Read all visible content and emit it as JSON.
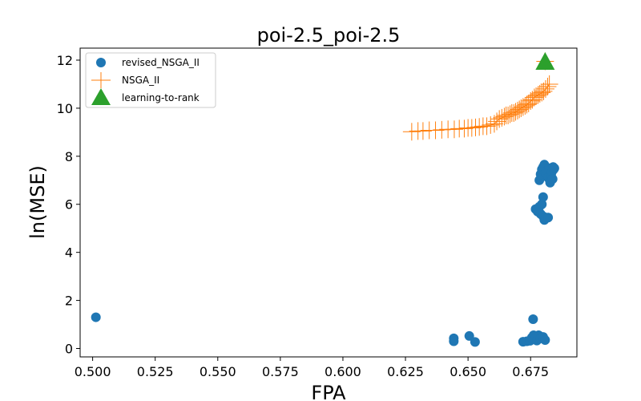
{
  "chart_data": {
    "type": "scatter",
    "title": "poi-2.5_poi-2.5",
    "xlabel": "FPA",
    "ylabel": "ln(MSE)",
    "xlim": [
      0.495,
      0.6935
    ],
    "ylim": [
      -0.35,
      12.5
    ],
    "xticks": [
      0.5,
      0.525,
      0.55,
      0.575,
      0.6,
      0.625,
      0.65,
      0.675
    ],
    "xtick_labels": [
      "0.500",
      "0.525",
      "0.550",
      "0.575",
      "0.600",
      "0.625",
      "0.650",
      "0.675"
    ],
    "yticks": [
      0,
      2,
      4,
      6,
      8,
      10,
      12
    ],
    "ytick_labels": [
      "0",
      "2",
      "4",
      "6",
      "8",
      "10",
      "12"
    ],
    "grid": false,
    "legend_position": "top-left",
    "colors": {
      "revised_NSGA_II": "#1f77b4",
      "NSGA_II": "#ff7f0e",
      "learning-to-rank": "#2ca02c"
    },
    "series": [
      {
        "name": "revised_NSGA_II",
        "marker": "circle",
        "points": [
          [
            0.5013,
            1.3
          ],
          [
            0.6443,
            0.42
          ],
          [
            0.6443,
            0.3
          ],
          [
            0.6505,
            0.52
          ],
          [
            0.6528,
            0.27
          ],
          [
            0.672,
            0.28
          ],
          [
            0.6735,
            0.3
          ],
          [
            0.6748,
            0.32
          ],
          [
            0.6755,
            0.45
          ],
          [
            0.676,
            1.22
          ],
          [
            0.6762,
            0.55
          ],
          [
            0.6768,
            0.4
          ],
          [
            0.6775,
            0.33
          ],
          [
            0.6782,
            0.55
          ],
          [
            0.679,
            0.42
          ],
          [
            0.68,
            0.48
          ],
          [
            0.6808,
            0.35
          ],
          [
            0.677,
            5.8
          ],
          [
            0.6778,
            5.7
          ],
          [
            0.6785,
            5.9
          ],
          [
            0.679,
            5.6
          ],
          [
            0.6795,
            6.0
          ],
          [
            0.68,
            5.5
          ],
          [
            0.6805,
            5.35
          ],
          [
            0.681,
            5.45
          ],
          [
            0.68,
            6.3
          ],
          [
            0.682,
            5.45
          ],
          [
            0.6785,
            7.0
          ],
          [
            0.679,
            7.25
          ],
          [
            0.6795,
            7.45
          ],
          [
            0.68,
            7.55
          ],
          [
            0.6805,
            7.65
          ],
          [
            0.681,
            7.3
          ],
          [
            0.6815,
            7.4
          ],
          [
            0.682,
            7.1
          ],
          [
            0.6825,
            7.5
          ],
          [
            0.6828,
            6.9
          ],
          [
            0.6832,
            7.2
          ],
          [
            0.6835,
            7.35
          ],
          [
            0.684,
            7.55
          ],
          [
            0.6838,
            7.05
          ],
          [
            0.6842,
            7.45
          ],
          [
            0.6845,
            7.5
          ]
        ]
      },
      {
        "name": "NSGA_II",
        "marker": "plus",
        "points": [
          [
            0.6275,
            9.02
          ],
          [
            0.63,
            9.05
          ],
          [
            0.632,
            9.05
          ],
          [
            0.6345,
            9.08
          ],
          [
            0.637,
            9.08
          ],
          [
            0.6395,
            9.1
          ],
          [
            0.642,
            9.12
          ],
          [
            0.6445,
            9.12
          ],
          [
            0.6465,
            9.15
          ],
          [
            0.6485,
            9.15
          ],
          [
            0.65,
            9.18
          ],
          [
            0.6515,
            9.18
          ],
          [
            0.653,
            9.2
          ],
          [
            0.6545,
            9.22
          ],
          [
            0.656,
            9.25
          ],
          [
            0.6575,
            9.25
          ],
          [
            0.659,
            9.3
          ],
          [
            0.6605,
            9.35
          ],
          [
            0.6615,
            9.45
          ],
          [
            0.6625,
            9.55
          ],
          [
            0.6635,
            9.6
          ],
          [
            0.6645,
            9.65
          ],
          [
            0.6652,
            9.7
          ],
          [
            0.666,
            9.7
          ],
          [
            0.6668,
            9.75
          ],
          [
            0.6675,
            9.8
          ],
          [
            0.6683,
            9.8
          ],
          [
            0.669,
            9.85
          ],
          [
            0.6698,
            9.9
          ],
          [
            0.6705,
            9.95
          ],
          [
            0.6712,
            10.0
          ],
          [
            0.672,
            10.05
          ],
          [
            0.6728,
            10.1
          ],
          [
            0.6735,
            10.15
          ],
          [
            0.6742,
            10.2
          ],
          [
            0.675,
            10.3
          ],
          [
            0.6757,
            10.35
          ],
          [
            0.6765,
            10.45
          ],
          [
            0.6772,
            10.5
          ],
          [
            0.678,
            10.55
          ],
          [
            0.6787,
            10.6
          ],
          [
            0.6795,
            10.65
          ],
          [
            0.6802,
            10.7
          ],
          [
            0.681,
            10.8
          ],
          [
            0.6818,
            10.9
          ],
          [
            0.6825,
            11.0
          ],
          [
            0.6808,
            11.95
          ]
        ]
      },
      {
        "name": "learning-to-rank",
        "marker": "triangle",
        "points": [
          [
            0.6808,
            11.9
          ]
        ]
      }
    ]
  }
}
